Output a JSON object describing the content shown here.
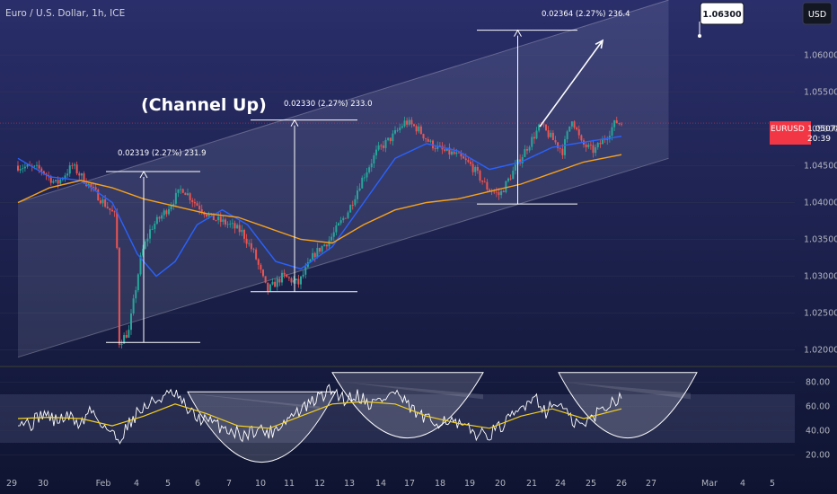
{
  "header": {
    "title": "Euro / U.S. Dollar, 1h, ICE",
    "currency": "USD"
  },
  "last_price": {
    "symbol": "EURUSD",
    "value": "1.05078",
    "countdown": "20:39"
  },
  "annotations": {
    "pattern_label": "(Channel Up)",
    "measure_1": "0.02319 (2.27%) 231.9",
    "measure_2": "0.02330 (2.27%) 233.0",
    "measure_3": "0.02364 (2.27%) 236.4",
    "target": "1.06300"
  },
  "colors": {
    "background": "#131722",
    "bull_candle": "#26a69a",
    "bear_candle": "#ef5350",
    "ma_fast": "#2962ff",
    "ma_slow": "#f7a21b",
    "rsi": "#ffffff",
    "rsi_ma": "#f5d020",
    "price_tag": "#f23645"
  },
  "chart_data": [
    {
      "type": "candlestick",
      "title": "Euro / U.S. Dollar, 1h, ICE",
      "ylabel": "USD",
      "ylim": [
        1.0175,
        1.0675
      ],
      "y_ticks": [
        "1.02000",
        "1.02500",
        "1.03000",
        "1.03500",
        "1.04000",
        "1.04500",
        "1.05000",
        "1.05500",
        "1.06000"
      ],
      "x_ticks": [
        "29",
        "30",
        "Feb",
        "4",
        "5",
        "6",
        "7",
        "10",
        "11",
        "12",
        "13",
        "14",
        "17",
        "18",
        "19",
        "20",
        "21",
        "24",
        "25",
        "26",
        "27",
        "Mar",
        "4",
        "5"
      ],
      "price_path": [
        {
          "t": 0,
          "p": 1.045
        },
        {
          "t": 0.8,
          "p": 1.0445
        },
        {
          "t": 1.3,
          "p": 1.0425
        },
        {
          "t": 1.8,
          "p": 1.045
        },
        {
          "t": 2.4,
          "p": 1.042
        },
        {
          "t": 2.8,
          "p": 1.04
        },
        {
          "t": 3.2,
          "p": 1.038
        },
        {
          "t": 3.3,
          "p": 1.021
        },
        {
          "t": 3.6,
          "p": 1.0225
        },
        {
          "t": 4.0,
          "p": 1.033
        },
        {
          "t": 4.3,
          "p": 1.0365
        },
        {
          "t": 4.8,
          "p": 1.039
        },
        {
          "t": 5.3,
          "p": 1.042
        },
        {
          "t": 5.7,
          "p": 1.04
        },
        {
          "t": 6.2,
          "p": 1.038
        },
        {
          "t": 6.8,
          "p": 1.037
        },
        {
          "t": 7.2,
          "p": 1.036
        },
        {
          "t": 7.6,
          "p": 1.033
        },
        {
          "t": 8.0,
          "p": 1.028
        },
        {
          "t": 8.5,
          "p": 1.03
        },
        {
          "t": 9.0,
          "p": 1.029
        },
        {
          "t": 9.5,
          "p": 1.033
        },
        {
          "t": 10.0,
          "p": 1.035
        },
        {
          "t": 10.6,
          "p": 1.039
        },
        {
          "t": 11.0,
          "p": 1.043
        },
        {
          "t": 11.5,
          "p": 1.047
        },
        {
          "t": 12.0,
          "p": 1.049
        },
        {
          "t": 12.4,
          "p": 1.051
        },
        {
          "t": 12.8,
          "p": 1.05
        },
        {
          "t": 13.2,
          "p": 1.048
        },
        {
          "t": 13.6,
          "p": 1.047
        },
        {
          "t": 14.0,
          "p": 1.0465
        },
        {
          "t": 14.5,
          "p": 1.045
        },
        {
          "t": 15.0,
          "p": 1.042
        },
        {
          "t": 15.4,
          "p": 1.041
        },
        {
          "t": 15.8,
          "p": 1.044
        },
        {
          "t": 16.2,
          "p": 1.047
        },
        {
          "t": 16.7,
          "p": 1.0505
        },
        {
          "t": 17.1,
          "p": 1.0485
        },
        {
          "t": 17.4,
          "p": 1.047
        },
        {
          "t": 17.7,
          "p": 1.0515
        },
        {
          "t": 18.0,
          "p": 1.048
        },
        {
          "t": 18.4,
          "p": 1.047
        },
        {
          "t": 18.8,
          "p": 1.049
        },
        {
          "t": 19.1,
          "p": 1.051
        },
        {
          "t": 19.2,
          "p": 1.0508
        }
      ],
      "ma_fast": [
        {
          "t": 0,
          "p": 1.046
        },
        {
          "t": 1,
          "p": 1.0435
        },
        {
          "t": 2,
          "p": 1.043
        },
        {
          "t": 3,
          "p": 1.04
        },
        {
          "t": 3.8,
          "p": 1.033
        },
        {
          "t": 4.4,
          "p": 1.03
        },
        {
          "t": 5,
          "p": 1.032
        },
        {
          "t": 5.7,
          "p": 1.037
        },
        {
          "t": 6.5,
          "p": 1.039
        },
        {
          "t": 7.3,
          "p": 1.037
        },
        {
          "t": 8.2,
          "p": 1.032
        },
        {
          "t": 9,
          "p": 1.031
        },
        {
          "t": 10,
          "p": 1.034
        },
        {
          "t": 11,
          "p": 1.04
        },
        {
          "t": 12,
          "p": 1.046
        },
        {
          "t": 13,
          "p": 1.048
        },
        {
          "t": 14,
          "p": 1.047
        },
        {
          "t": 15,
          "p": 1.0445
        },
        {
          "t": 16,
          "p": 1.0455
        },
        {
          "t": 17,
          "p": 1.0475
        },
        {
          "t": 18,
          "p": 1.0482
        },
        {
          "t": 19.2,
          "p": 1.049
        }
      ],
      "ma_slow": [
        {
          "t": 0,
          "p": 1.04
        },
        {
          "t": 1,
          "p": 1.042
        },
        {
          "t": 2,
          "p": 1.043
        },
        {
          "t": 3,
          "p": 1.042
        },
        {
          "t": 4,
          "p": 1.0405
        },
        {
          "t": 5,
          "p": 1.0395
        },
        {
          "t": 6,
          "p": 1.0385
        },
        {
          "t": 7,
          "p": 1.038
        },
        {
          "t": 8,
          "p": 1.0365
        },
        {
          "t": 9,
          "p": 1.035
        },
        {
          "t": 10,
          "p": 1.0345
        },
        {
          "t": 11,
          "p": 1.037
        },
        {
          "t": 12,
          "p": 1.039
        },
        {
          "t": 13,
          "p": 1.04
        },
        {
          "t": 14,
          "p": 1.0405
        },
        {
          "t": 15,
          "p": 1.0415
        },
        {
          "t": 16,
          "p": 1.0425
        },
        {
          "t": 17,
          "p": 1.044
        },
        {
          "t": 18,
          "p": 1.0455
        },
        {
          "t": 19.2,
          "p": 1.0465
        }
      ],
      "channel": {
        "upper": [
          {
            "t": 0,
            "p": 1.04
          },
          {
            "t": 20.7,
            "p": 1.0675
          }
        ],
        "lower": [
          {
            "t": 0,
            "p": 1.019
          },
          {
            "t": 20.7,
            "p": 1.046
          }
        ]
      },
      "measures": [
        {
          "t_start": 2.8,
          "t_end": 5.8,
          "t_line": 4.0,
          "low": 1.021,
          "high": 1.0442
        },
        {
          "t_start": 7.4,
          "t_end": 10.8,
          "t_line": 8.8,
          "low": 1.0279,
          "high": 1.0512
        },
        {
          "t_start": 14.6,
          "t_end": 17.8,
          "t_line": 15.9,
          "low": 1.0398,
          "high": 1.0634
        }
      ],
      "forecast_arrow": {
        "from": {
          "t": 16.6,
          "p": 1.0503
        },
        "to": {
          "t": 18.6,
          "p": 1.062
        }
      },
      "target_price": 1.063
    },
    {
      "type": "line",
      "ylim": [
        10,
        90
      ],
      "y_ticks": [
        "80.00",
        "60.00",
        "40.00",
        "20.00"
      ],
      "band": [
        30,
        70
      ],
      "rsi": [
        {
          "t": 0,
          "v": 50
        },
        {
          "t": 0.4,
          "v": 45
        },
        {
          "t": 0.8,
          "v": 55
        },
        {
          "t": 1.2,
          "v": 48
        },
        {
          "t": 1.6,
          "v": 52
        },
        {
          "t": 2.0,
          "v": 45
        },
        {
          "t": 2.3,
          "v": 58
        },
        {
          "t": 2.6,
          "v": 48
        },
        {
          "t": 2.9,
          "v": 40
        },
        {
          "t": 3.2,
          "v": 32
        },
        {
          "t": 3.5,
          "v": 45
        },
        {
          "t": 3.8,
          "v": 55
        },
        {
          "t": 4.2,
          "v": 62
        },
        {
          "t": 4.6,
          "v": 68
        },
        {
          "t": 5.0,
          "v": 70
        },
        {
          "t": 5.3,
          "v": 60
        },
        {
          "t": 5.6,
          "v": 52
        },
        {
          "t": 6.0,
          "v": 48
        },
        {
          "t": 6.4,
          "v": 44
        },
        {
          "t": 6.8,
          "v": 40
        },
        {
          "t": 7.2,
          "v": 36
        },
        {
          "t": 7.6,
          "v": 42
        },
        {
          "t": 8.0,
          "v": 38
        },
        {
          "t": 8.4,
          "v": 46
        },
        {
          "t": 8.8,
          "v": 54
        },
        {
          "t": 9.2,
          "v": 60
        },
        {
          "t": 9.6,
          "v": 68
        },
        {
          "t": 10.0,
          "v": 74
        },
        {
          "t": 10.4,
          "v": 66
        },
        {
          "t": 10.8,
          "v": 70
        },
        {
          "t": 11.2,
          "v": 62
        },
        {
          "t": 11.6,
          "v": 66
        },
        {
          "t": 12.0,
          "v": 72
        },
        {
          "t": 12.4,
          "v": 60
        },
        {
          "t": 12.8,
          "v": 52
        },
        {
          "t": 13.2,
          "v": 46
        },
        {
          "t": 13.6,
          "v": 50
        },
        {
          "t": 14.0,
          "v": 44
        },
        {
          "t": 14.4,
          "v": 40
        },
        {
          "t": 14.8,
          "v": 36
        },
        {
          "t": 15.2,
          "v": 40
        },
        {
          "t": 15.6,
          "v": 48
        },
        {
          "t": 16.0,
          "v": 58
        },
        {
          "t": 16.4,
          "v": 70
        },
        {
          "t": 16.8,
          "v": 56
        },
        {
          "t": 17.2,
          "v": 64
        },
        {
          "t": 17.6,
          "v": 48
        },
        {
          "t": 18.0,
          "v": 44
        },
        {
          "t": 18.4,
          "v": 54
        },
        {
          "t": 18.8,
          "v": 62
        },
        {
          "t": 19.2,
          "v": 70
        }
      ],
      "rsi_ma": [
        {
          "t": 0,
          "v": 50
        },
        {
          "t": 1,
          "v": 51
        },
        {
          "t": 2,
          "v": 50
        },
        {
          "t": 3,
          "v": 44
        },
        {
          "t": 4,
          "v": 52
        },
        {
          "t": 5,
          "v": 62
        },
        {
          "t": 6,
          "v": 54
        },
        {
          "t": 7,
          "v": 44
        },
        {
          "t": 8,
          "v": 42
        },
        {
          "t": 9,
          "v": 52
        },
        {
          "t": 10,
          "v": 62
        },
        {
          "t": 11,
          "v": 64
        },
        {
          "t": 12,
          "v": 62
        },
        {
          "t": 13,
          "v": 52
        },
        {
          "t": 14,
          "v": 46
        },
        {
          "t": 15,
          "v": 42
        },
        {
          "t": 16,
          "v": 52
        },
        {
          "t": 17,
          "v": 58
        },
        {
          "t": 18,
          "v": 50
        },
        {
          "t": 19.2,
          "v": 58
        }
      ],
      "arcs": [
        {
          "t_start": 5.4,
          "t_end": 10.1,
          "top": 72,
          "bottom": 14
        },
        {
          "t_start": 10.0,
          "t_end": 14.8,
          "top": 88,
          "bottom": 34
        },
        {
          "t_start": 17.2,
          "t_end": 21.6,
          "top": 88,
          "bottom": 34
        }
      ],
      "fans": [
        {
          "from": {
            "t": 5.0,
            "v": 72
          },
          "to": {
            "t": 9.6,
            "v": 60
          }
        },
        {
          "from": {
            "t": 10.4,
            "v": 80
          },
          "to": {
            "t": 14.8,
            "v": 70
          }
        },
        {
          "from": {
            "t": 17.4,
            "v": 80
          },
          "to": {
            "t": 21.4,
            "v": 71
          }
        }
      ]
    }
  ]
}
